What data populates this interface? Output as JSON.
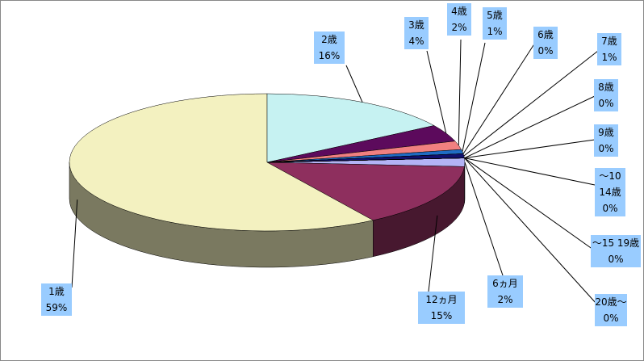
{
  "chart_data": {
    "type": "pie",
    "categories": [
      "6ヵ月",
      "12ヵ月",
      "1歳",
      "2歳",
      "3歳",
      "4歳",
      "5歳",
      "6歳",
      "7歳",
      "8歳",
      "9歳",
      "～10 14歳",
      "～15 19歳",
      "20歳～"
    ],
    "values": [
      2,
      15,
      59,
      16,
      4,
      2,
      1,
      0,
      1,
      0,
      0,
      0,
      0,
      0
    ],
    "value_labels": [
      "2%",
      "15%",
      "59%",
      "16%",
      "4%",
      "2%",
      "1%",
      "0%",
      "1%",
      "0%",
      "0%",
      "0%",
      "0%",
      "0%"
    ],
    "colors": [
      "#b3b3f5",
      "#8e2f5e",
      "#f3f1c0",
      "#c6f2f2",
      "#5c0a5c",
      "#f08080",
      "#1f6cc4",
      "#c8c8ff",
      "#10106e",
      "#e0e0ff",
      "#808080",
      "#40a0a0",
      "#a0a0a0",
      "#6060c0"
    ]
  }
}
